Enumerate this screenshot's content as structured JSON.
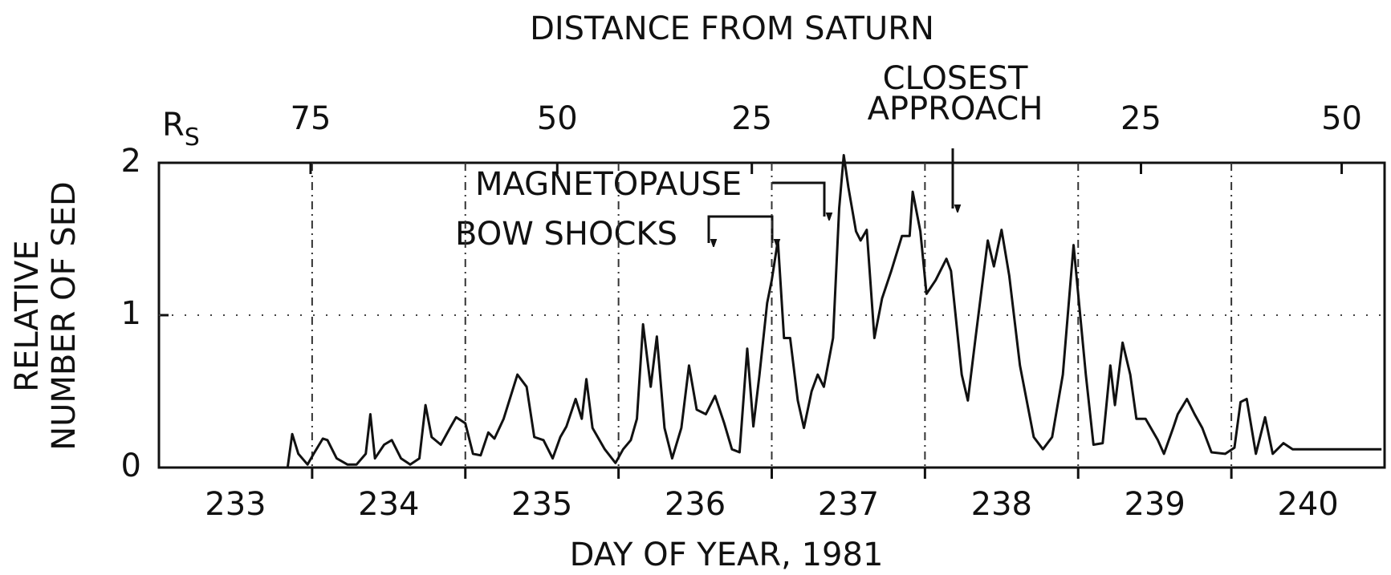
{
  "chart_data": {
    "type": "line",
    "title": "DISTANCE FROM SATURN",
    "x_label": "DAY OF YEAR, 1981",
    "y_label": [
      "RELATIVE",
      "NUMBER OF SED"
    ],
    "top_axis": {
      "label": "R",
      "subscript": "S",
      "ticks": [
        {
          "value": 233.99,
          "label": "75"
        },
        {
          "value": 235.6,
          "label": "50"
        },
        {
          "value": 236.87,
          "label": "25"
        },
        {
          "value": 239.41,
          "label": "25"
        },
        {
          "value": 240.72,
          "label": "50"
        }
      ]
    },
    "annotations": {
      "magnetopause": "MAGNETOPAUSE",
      "bow_shocks": "BOW SHOCKS",
      "closest_approach": [
        "CLOSEST",
        "APPROACH"
      ]
    },
    "xlim": [
      233,
      241
    ],
    "xticks": [
      {
        "value": 233.5,
        "label": "233"
      },
      {
        "value": 234.5,
        "label": "234"
      },
      {
        "value": 235.5,
        "label": "235"
      },
      {
        "value": 236.5,
        "label": "236"
      },
      {
        "value": 237.5,
        "label": "237"
      },
      {
        "value": 238.5,
        "label": "238"
      },
      {
        "value": 239.5,
        "label": "239"
      },
      {
        "value": 240.5,
        "label": "240"
      }
    ],
    "xgrid": [
      234,
      235,
      236,
      237,
      238,
      239,
      240
    ],
    "ylim": [
      0,
      2
    ],
    "yticks": [
      0,
      1,
      2
    ],
    "grid": true,
    "color": "#111111",
    "x": [
      233.01,
      233.84,
      233.87,
      233.91,
      233.97,
      234.01,
      234.07,
      234.1,
      234.16,
      234.23,
      234.29,
      234.35,
      234.38,
      234.41,
      234.47,
      234.52,
      234.58,
      234.64,
      234.7,
      234.74,
      234.78,
      234.84,
      234.9,
      234.94,
      235.0,
      235.05,
      235.1,
      235.15,
      235.19,
      235.25,
      235.34,
      235.4,
      235.45,
      235.51,
      235.57,
      235.62,
      235.66,
      235.72,
      235.76,
      235.79,
      235.83,
      235.91,
      235.98,
      236.03,
      236.08,
      236.12,
      236.16,
      236.21,
      236.25,
      236.3,
      236.35,
      236.41,
      236.46,
      236.51,
      236.57,
      236.63,
      236.69,
      236.74,
      236.79,
      236.84,
      236.88,
      236.92,
      236.97,
      237.0,
      237.04,
      237.08,
      237.12,
      237.17,
      237.21,
      237.26,
      237.3,
      237.34,
      237.4,
      237.44,
      237.47,
      237.5,
      237.55,
      237.58,
      237.62,
      237.67,
      237.72,
      237.78,
      237.85,
      237.9,
      237.92,
      237.97,
      238.01,
      238.07,
      238.14,
      238.17,
      238.24,
      238.28,
      238.33,
      238.41,
      238.45,
      238.5,
      238.55,
      238.62,
      238.71,
      238.77,
      238.83,
      238.9,
      238.97,
      239.0,
      239.05,
      239.1,
      239.16,
      239.21,
      239.24,
      239.29,
      239.34,
      239.38,
      239.44,
      239.52,
      239.56,
      239.62,
      239.65,
      239.71,
      239.76,
      239.81,
      239.87,
      239.96,
      240.02,
      240.06,
      240.1,
      240.16,
      240.22,
      240.27,
      240.34,
      240.4,
      240.69,
      240.98
    ],
    "values": [
      0,
      0,
      0.22,
      0.09,
      0.02,
      0.09,
      0.19,
      0.18,
      0.06,
      0.02,
      0.02,
      0.09,
      0.35,
      0.06,
      0.15,
      0.18,
      0.06,
      0.02,
      0.06,
      0.41,
      0.2,
      0.15,
      0.26,
      0.33,
      0.29,
      0.09,
      0.08,
      0.23,
      0.19,
      0.32,
      0.61,
      0.53,
      0.2,
      0.18,
      0.06,
      0.2,
      0.27,
      0.45,
      0.32,
      0.58,
      0.26,
      0.12,
      0.03,
      0.12,
      0.18,
      0.32,
      0.94,
      0.53,
      0.86,
      0.26,
      0.06,
      0.26,
      0.67,
      0.38,
      0.35,
      0.47,
      0.29,
      0.12,
      0.1,
      0.78,
      0.27,
      0.61,
      1.08,
      1.23,
      1.49,
      0.85,
      0.85,
      0.44,
      0.26,
      0.5,
      0.61,
      0.53,
      0.85,
      1.7,
      2.05,
      1.84,
      1.55,
      1.49,
      1.56,
      0.85,
      1.11,
      1.29,
      1.52,
      1.52,
      1.81,
      1.55,
      1.14,
      1.23,
      1.37,
      1.29,
      0.61,
      0.44,
      0.85,
      1.49,
      1.32,
      1.56,
      1.26,
      0.67,
      0.2,
      0.12,
      0.2,
      0.61,
      1.46,
      1.14,
      0.61,
      0.15,
      0.16,
      0.67,
      0.41,
      0.82,
      0.61,
      0.32,
      0.32,
      0.18,
      0.09,
      0.26,
      0.35,
      0.45,
      0.35,
      0.26,
      0.1,
      0.09,
      0.13,
      0.43,
      0.45,
      0.09,
      0.33,
      0.09,
      0.16,
      0.12,
      0.12,
      0.12
    ]
  }
}
